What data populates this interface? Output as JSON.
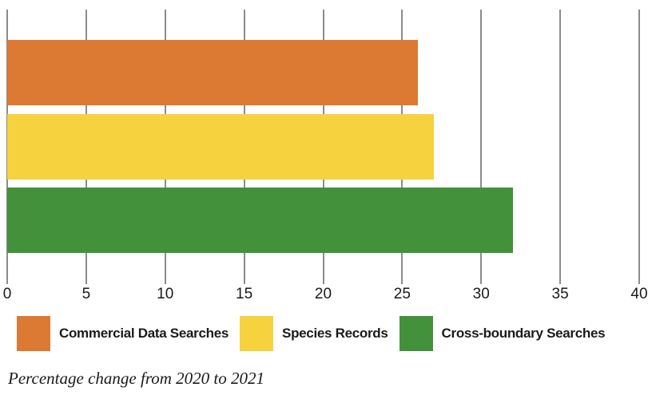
{
  "chart_data": {
    "type": "bar",
    "orientation": "horizontal",
    "title": "",
    "categories": [
      "Commercial Data Searches",
      "Species Records",
      "Cross-boundary Searches"
    ],
    "values": [
      26,
      27,
      32
    ],
    "colors": [
      "#dc7a33",
      "#f5d23e",
      "#43913a"
    ],
    "xlabel": "",
    "ylabel": "",
    "xlim": [
      0,
      40
    ],
    "xticks": [
      0,
      5,
      10,
      15,
      20,
      25,
      30,
      35,
      40
    ],
    "grid": true,
    "gridline_color": "#8c8c8c",
    "legend_position": "bottom",
    "caption": "Percentage change from 2020 to 2021"
  },
  "legend": {
    "items": [
      {
        "label": "Commercial Data Searches",
        "color": "#dc7a33"
      },
      {
        "label": "Species Records",
        "color": "#f5d23e"
      },
      {
        "label": "Cross-boundary Searches",
        "color": "#43913a"
      }
    ]
  },
  "caption": {
    "text": "Percentage change from 2020 to 2021"
  }
}
